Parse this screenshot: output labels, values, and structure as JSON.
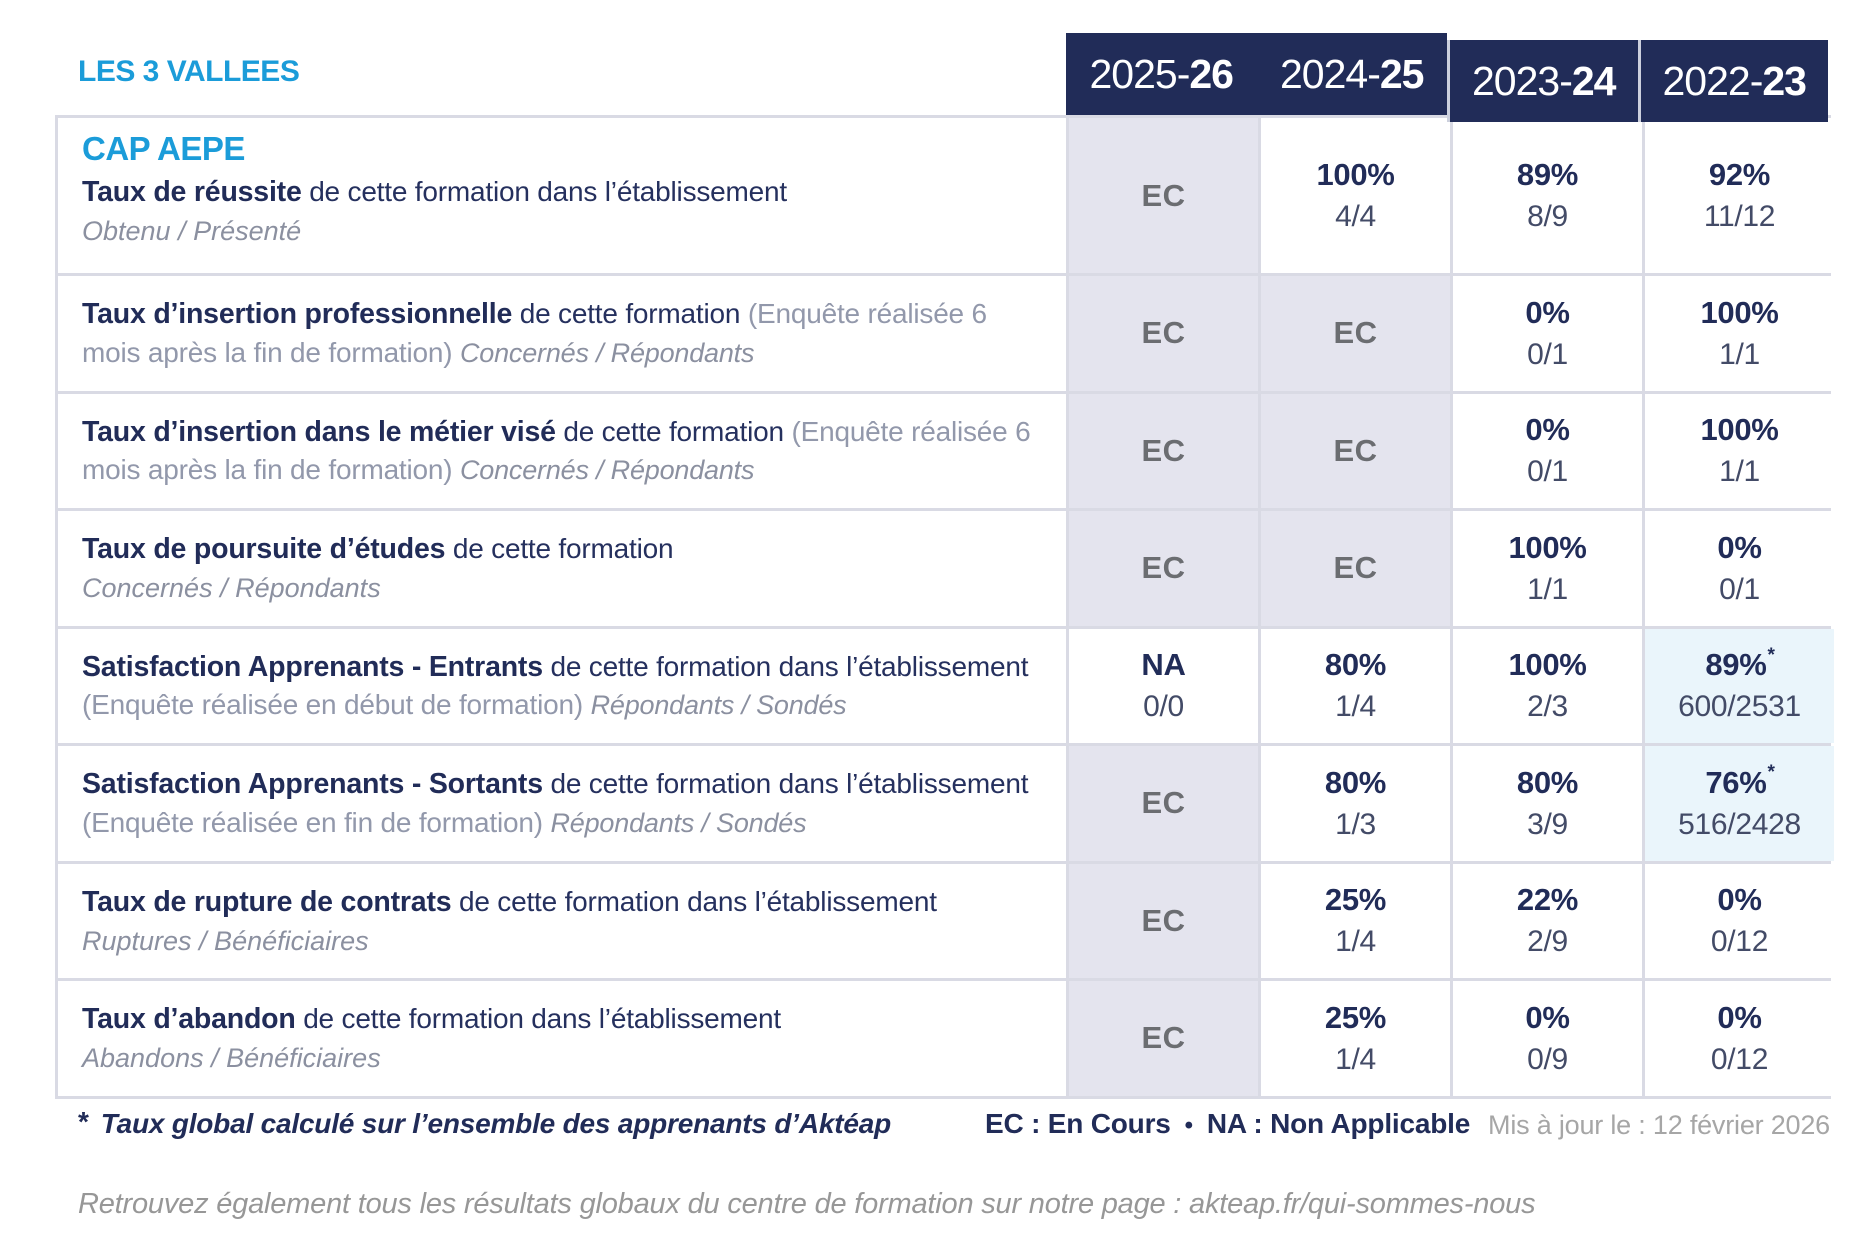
{
  "header": {
    "school": "LES 3 VALLEES",
    "years": [
      {
        "start": "2025-",
        "end": "26",
        "offset": false
      },
      {
        "start": "2024-",
        "end": "25",
        "offset": false
      },
      {
        "start": "2023-",
        "end": "24",
        "offset": true
      },
      {
        "start": "2022-",
        "end": "23",
        "offset": true
      }
    ]
  },
  "table": {
    "program": "CAP AEPE",
    "rows": [
      {
        "title": "Taux de réussite",
        "text": "de cette formation dans l’établissement",
        "paren": "",
        "inline_sub": "",
        "subtitle": "Obtenu / Présenté",
        "cells": [
          {
            "type": "ec",
            "label": "EC"
          },
          {
            "type": "value",
            "pct": "100%",
            "frac": "4/4"
          },
          {
            "type": "value",
            "pct": "89%",
            "frac": "8/9"
          },
          {
            "type": "value",
            "pct": "92%",
            "frac": "11/12"
          }
        ]
      },
      {
        "title": "Taux d’insertion professionnelle",
        "text": "de cette formation",
        "paren": "(Enquête réalisée 6 mois après la fin de formation)",
        "inline_sub": "Concernés / Répondants",
        "subtitle": "",
        "cells": [
          {
            "type": "ec",
            "label": "EC"
          },
          {
            "type": "ec",
            "label": "EC"
          },
          {
            "type": "value",
            "pct": "0%",
            "frac": "0/1"
          },
          {
            "type": "value",
            "pct": "100%",
            "frac": "1/1"
          }
        ]
      },
      {
        "title": "Taux d’insertion dans le métier visé",
        "text": "de cette formation",
        "paren": "(Enquête réalisée 6 mois après la fin de formation)",
        "inline_sub": "Concernés / Répondants",
        "subtitle": "",
        "cells": [
          {
            "type": "ec",
            "label": "EC"
          },
          {
            "type": "ec",
            "label": "EC"
          },
          {
            "type": "value",
            "pct": "0%",
            "frac": "0/1"
          },
          {
            "type": "value",
            "pct": "100%",
            "frac": "1/1"
          }
        ]
      },
      {
        "title": "Taux de poursuite d’études",
        "text": "de cette formation",
        "paren": "",
        "inline_sub": "",
        "subtitle": "Concernés / Répondants",
        "cells": [
          {
            "type": "ec",
            "label": "EC"
          },
          {
            "type": "ec",
            "label": "EC"
          },
          {
            "type": "value",
            "pct": "100%",
            "frac": "1/1"
          },
          {
            "type": "value",
            "pct": "0%",
            "frac": "0/1"
          }
        ]
      },
      {
        "title": "Satisfaction Apprenants - Entrants",
        "text": "de cette formation dans l’établissement",
        "paren": "(Enquête réalisée en début de formation)",
        "inline_sub": "Répondants / Sondés",
        "subtitle": "",
        "cells": [
          {
            "type": "value",
            "pct": "NA",
            "frac": "0/0"
          },
          {
            "type": "value",
            "pct": "80%",
            "frac": "1/4"
          },
          {
            "type": "value",
            "pct": "100%",
            "frac": "2/3"
          },
          {
            "type": "value",
            "pct": "89%",
            "frac": "600/2531",
            "star": true,
            "highlight": true
          }
        ]
      },
      {
        "title": "Satisfaction Apprenants - Sortants",
        "text": "de cette formation dans l’établissement",
        "paren": "(Enquête réalisée en fin de formation)",
        "inline_sub": "Répondants / Sondés",
        "subtitle": "",
        "cells": [
          {
            "type": "ec",
            "label": "EC"
          },
          {
            "type": "value",
            "pct": "80%",
            "frac": "1/3"
          },
          {
            "type": "value",
            "pct": "80%",
            "frac": "3/9"
          },
          {
            "type": "value",
            "pct": "76%",
            "frac": "516/2428",
            "star": true,
            "highlight": true
          }
        ]
      },
      {
        "title": "Taux de rupture de contrats",
        "text": "de cette formation dans l’établissement",
        "paren": "",
        "inline_sub": "",
        "subtitle": "Ruptures / Bénéficiaires",
        "cells": [
          {
            "type": "ec",
            "label": "EC"
          },
          {
            "type": "value",
            "pct": "25%",
            "frac": "1/4"
          },
          {
            "type": "value",
            "pct": "22%",
            "frac": "2/9"
          },
          {
            "type": "value",
            "pct": "0%",
            "frac": "0/12"
          }
        ]
      },
      {
        "title": "Taux d’abandon",
        "text": "de cette formation dans l’établissement",
        "paren": "",
        "inline_sub": "",
        "subtitle": "Abandons / Bénéficiaires",
        "cells": [
          {
            "type": "ec",
            "label": "EC"
          },
          {
            "type": "value",
            "pct": "25%",
            "frac": "1/4"
          },
          {
            "type": "value",
            "pct": "0%",
            "frac": "0/9"
          },
          {
            "type": "value",
            "pct": "0%",
            "frac": "0/12"
          }
        ]
      }
    ]
  },
  "footer": {
    "star": "*",
    "global_note": "Taux global calculé sur l’ensemble des apprenants d’Aktéap",
    "legend_ec": "EC : En Cours",
    "legend_sep": "•",
    "legend_na": "NA : Non Applicable",
    "updated": "Mis à jour le : 12 février 2026",
    "bottom_note": "Retrouvez également tous les résultats globaux du centre de formation sur notre page : akteap.fr/qui-sommes-nous"
  },
  "colors": {
    "navy": "#212c58",
    "cyan": "#1b9cd9",
    "ec_background": "#e4e4ee",
    "highlight_background": "#eaf5fb",
    "border": "#d9dae4"
  }
}
